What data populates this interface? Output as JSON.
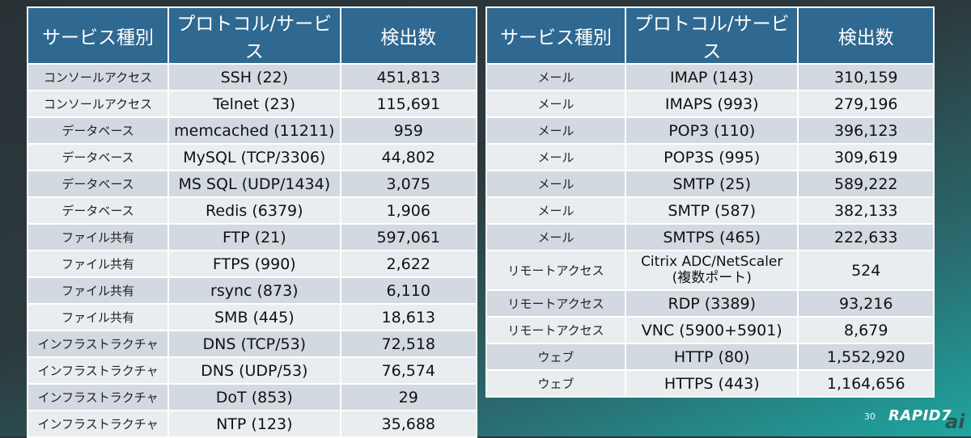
{
  "headers": [
    "サービス種別",
    "プロトコル/サービス",
    "検出数"
  ],
  "left_rows": [
    [
      "コンソールアクセス",
      "SSH (22)",
      "451,813"
    ],
    [
      "コンソールアクセス",
      "Telnet (23)",
      "115,691"
    ],
    [
      "データベース",
      "memcached (11211)",
      "959"
    ],
    [
      "データベース",
      "MySQL (TCP/3306)",
      "44,802"
    ],
    [
      "データベース",
      "MS SQL (UDP/1434)",
      "3,075"
    ],
    [
      "データベース",
      "Redis (6379)",
      "1,906"
    ],
    [
      "ファイル共有",
      "FTP (21)",
      "597,061"
    ],
    [
      "ファイル共有",
      "FTPS (990)",
      "2,622"
    ],
    [
      "ファイル共有",
      "rsync (873)",
      "6,110"
    ],
    [
      "ファイル共有",
      "SMB (445)",
      "18,613"
    ],
    [
      "インフラストラクチャ",
      "DNS (TCP/53)",
      "72,518"
    ],
    [
      "インフラストラクチャ",
      "DNS (UDP/53)",
      "76,574"
    ],
    [
      "インフラストラクチャ",
      "DoT (853)",
      "29"
    ],
    [
      "インフラストラクチャ",
      "NTP (123)",
      "35,688"
    ]
  ],
  "right_rows": [
    [
      "メール",
      "IMAP (143)",
      "310,159"
    ],
    [
      "メール",
      "IMAPS (993)",
      "279,196"
    ],
    [
      "メール",
      "POP3 (110)",
      "396,123"
    ],
    [
      "メール",
      "POP3S (995)",
      "309,619"
    ],
    [
      "メール",
      "SMTP (25)",
      "589,222"
    ],
    [
      "メール",
      "SMTP (587)",
      "382,133"
    ],
    [
      "メール",
      "SMTPS (465)",
      "222,633"
    ],
    [
      "リモートアクセス",
      "Citrix ADC/NetScaler\n(複数ポート)",
      "524"
    ],
    [
      "リモートアクセス",
      "RDP (3389)",
      "93,216"
    ],
    [
      "リモートアクセス",
      "VNC (5900+5901)",
      "8,679"
    ],
    [
      "ウェブ",
      "HTTP (80)",
      "1,552,920"
    ],
    [
      "ウェブ",
      "HTTPS (443)",
      "1,164,656"
    ]
  ],
  "page_number": "30",
  "logo": "RAPID7",
  "watermark": "ai"
}
